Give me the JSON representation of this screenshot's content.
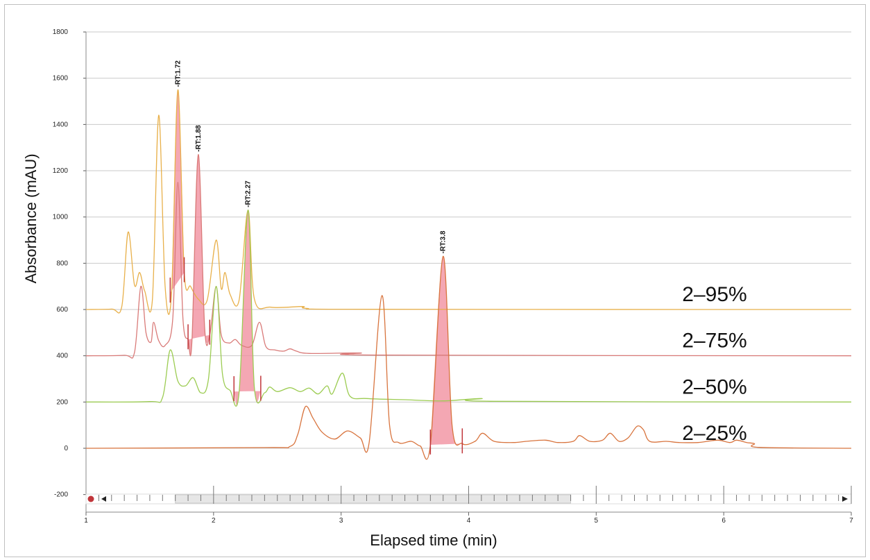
{
  "chart_data": {
    "type": "line",
    "xlabel": "Elapsed time (min)",
    "ylabel": "Absorbance (mAU)",
    "xlim": [
      1,
      7
    ],
    "ylim": [
      -200,
      1800
    ],
    "x_ticks": [
      "1",
      "2",
      "3",
      "4",
      "5",
      "6",
      "7"
    ],
    "y_ticks": [
      "-200",
      "0",
      "200",
      "400",
      "600",
      "800",
      "1000",
      "1200",
      "1400",
      "1600",
      "1800"
    ],
    "grid": "horizontal",
    "series": [
      {
        "name": "2–95%",
        "color": "#e8b04a",
        "points": [
          [
            1.0,
            600
          ],
          [
            1.2,
            602
          ],
          [
            1.28,
            612
          ],
          [
            1.33,
            935
          ],
          [
            1.38,
            705
          ],
          [
            1.42,
            760
          ],
          [
            1.46,
            680
          ],
          [
            1.52,
            640
          ],
          [
            1.57,
            1440
          ],
          [
            1.62,
            700
          ],
          [
            1.67,
            665
          ],
          [
            1.72,
            1550
          ],
          [
            1.77,
            760
          ],
          [
            1.82,
            700
          ],
          [
            1.88,
            645
          ],
          [
            1.95,
            640
          ],
          [
            2.02,
            900
          ],
          [
            2.06,
            690
          ],
          [
            2.09,
            760
          ],
          [
            2.13,
            665
          ],
          [
            2.2,
            640
          ],
          [
            2.27,
            1030
          ],
          [
            2.32,
            645
          ],
          [
            2.45,
            610
          ],
          [
            2.7,
            613
          ],
          [
            2.73,
            605
          ],
          [
            3.2,
            601
          ],
          [
            7.0,
            600
          ]
        ]
      },
      {
        "name": "2–75%",
        "color": "#d97a78",
        "points": [
          [
            1.0,
            400
          ],
          [
            1.3,
            402
          ],
          [
            1.38,
            415
          ],
          [
            1.43,
            700
          ],
          [
            1.47,
            500
          ],
          [
            1.51,
            460
          ],
          [
            1.53,
            545
          ],
          [
            1.57,
            465
          ],
          [
            1.62,
            445
          ],
          [
            1.68,
            560
          ],
          [
            1.72,
            1150
          ],
          [
            1.76,
            560
          ],
          [
            1.8,
            470
          ],
          [
            1.83,
            460
          ],
          [
            1.88,
            1270
          ],
          [
            1.93,
            520
          ],
          [
            1.97,
            490
          ],
          [
            2.02,
            700
          ],
          [
            2.06,
            490
          ],
          [
            2.12,
            455
          ],
          [
            2.17,
            470
          ],
          [
            2.22,
            445
          ],
          [
            2.3,
            445
          ],
          [
            2.36,
            545
          ],
          [
            2.41,
            440
          ],
          [
            2.48,
            425
          ],
          [
            2.55,
            420
          ],
          [
            2.6,
            430
          ],
          [
            2.65,
            420
          ],
          [
            2.75,
            410
          ],
          [
            3.15,
            412
          ],
          [
            3.3,
            403
          ],
          [
            7.0,
            400
          ]
        ]
      },
      {
        "name": "2–50%",
        "color": "#9ccc52",
        "points": [
          [
            1.0,
            200
          ],
          [
            1.5,
            202
          ],
          [
            1.6,
            220
          ],
          [
            1.66,
            425
          ],
          [
            1.72,
            290
          ],
          [
            1.78,
            270
          ],
          [
            1.84,
            305
          ],
          [
            1.9,
            240
          ],
          [
            1.96,
            300
          ],
          [
            2.02,
            700
          ],
          [
            2.07,
            320
          ],
          [
            2.13,
            250
          ],
          [
            2.2,
            240
          ],
          [
            2.27,
            1030
          ],
          [
            2.32,
            260
          ],
          [
            2.4,
            240
          ],
          [
            2.44,
            265
          ],
          [
            2.5,
            245
          ],
          [
            2.6,
            262
          ],
          [
            2.68,
            245
          ],
          [
            2.75,
            260
          ],
          [
            2.82,
            235
          ],
          [
            2.89,
            270
          ],
          [
            2.93,
            235
          ],
          [
            3.01,
            325
          ],
          [
            3.07,
            225
          ],
          [
            3.2,
            215
          ],
          [
            3.5,
            210
          ],
          [
            3.8,
            205
          ],
          [
            4.1,
            215
          ],
          [
            4.2,
            203
          ],
          [
            7.0,
            200
          ]
        ]
      },
      {
        "name": "2–25%",
        "color": "#d8743e",
        "points": [
          [
            1.0,
            0
          ],
          [
            2.4,
            3
          ],
          [
            2.6,
            8
          ],
          [
            2.66,
            60
          ],
          [
            2.72,
            180
          ],
          [
            2.78,
            130
          ],
          [
            2.85,
            70
          ],
          [
            2.95,
            40
          ],
          [
            3.05,
            75
          ],
          [
            3.15,
            45
          ],
          [
            3.22,
            25
          ],
          [
            3.32,
            660
          ],
          [
            3.38,
            100
          ],
          [
            3.45,
            25
          ],
          [
            3.55,
            30
          ],
          [
            3.62,
            10
          ],
          [
            3.7,
            15
          ],
          [
            3.8,
            830
          ],
          [
            3.87,
            100
          ],
          [
            3.95,
            20
          ],
          [
            4.05,
            30
          ],
          [
            4.11,
            65
          ],
          [
            4.2,
            30
          ],
          [
            4.35,
            25
          ],
          [
            4.45,
            30
          ],
          [
            4.6,
            35
          ],
          [
            4.7,
            25
          ],
          [
            4.82,
            30
          ],
          [
            4.87,
            55
          ],
          [
            4.95,
            30
          ],
          [
            5.05,
            35
          ],
          [
            5.11,
            65
          ],
          [
            5.18,
            30
          ],
          [
            5.25,
            45
          ],
          [
            5.32,
            95
          ],
          [
            5.37,
            80
          ],
          [
            5.42,
            30
          ],
          [
            5.55,
            30
          ],
          [
            5.65,
            25
          ],
          [
            5.8,
            25
          ],
          [
            5.95,
            35
          ],
          [
            6.05,
            25
          ],
          [
            6.1,
            35
          ],
          [
            6.18,
            25
          ],
          [
            6.24,
            20
          ],
          [
            6.28,
            4
          ],
          [
            7.0,
            0
          ]
        ]
      }
    ],
    "peaks": [
      {
        "label": "-RT:1.72",
        "rt": 1.72,
        "apex": 1550,
        "start": 1.66,
        "end": 1.77,
        "series": 0
      },
      {
        "label": "-RT:1.88",
        "rt": 1.88,
        "apex": 1270,
        "start": 1.8,
        "end": 1.97,
        "series": 1
      },
      {
        "label": "-RT:2.27",
        "rt": 2.27,
        "apex": 1030,
        "start": 2.16,
        "end": 2.37,
        "series": 2
      },
      {
        "label": "-RT:3.8",
        "rt": 3.8,
        "apex": 830,
        "start": 3.7,
        "end": 3.95,
        "series": 3
      }
    ],
    "series_labels": [
      "2–95%",
      "2–75%",
      "2–50%",
      "2–25%"
    ],
    "legend_placement": "right, beside each trace",
    "peak_fill_color": "#f08a9a",
    "marker_color": "#c0353a",
    "range_selector": {
      "start": 1.7,
      "end": 4.8
    }
  }
}
